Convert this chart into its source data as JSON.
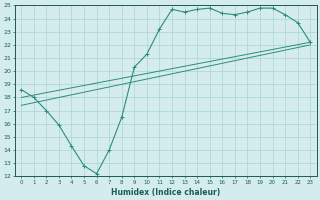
{
  "xlabel": "Humidex (Indice chaleur)",
  "bg_color": "#d4edec",
  "grid_color": "#a8d5d0",
  "line_color": "#2d8b80",
  "xlim": [
    -0.5,
    23.5
  ],
  "ylim": [
    12,
    25
  ],
  "xticks": [
    0,
    1,
    2,
    3,
    4,
    5,
    6,
    7,
    8,
    9,
    10,
    11,
    12,
    13,
    14,
    15,
    16,
    17,
    18,
    19,
    20,
    21,
    22,
    23
  ],
  "yticks": [
    12,
    13,
    14,
    15,
    16,
    17,
    18,
    19,
    20,
    21,
    22,
    23,
    24,
    25
  ],
  "curve1_x": [
    0,
    1,
    2,
    3,
    4,
    5,
    6,
    7,
    8,
    9,
    10,
    11,
    12,
    13,
    14,
    15,
    16,
    17,
    18,
    19,
    20,
    21,
    22,
    23
  ],
  "curve1_y": [
    18.6,
    18.0,
    17.0,
    15.9,
    14.3,
    12.8,
    12.2,
    14.0,
    16.5,
    20.3,
    21.3,
    23.2,
    24.7,
    24.5,
    24.7,
    24.8,
    24.4,
    24.3,
    24.5,
    24.8,
    24.8,
    24.3,
    23.7,
    22.2
  ],
  "line1_x": [
    0,
    23
  ],
  "line1_y": [
    18.0,
    22.2
  ],
  "line2_x": [
    0,
    23
  ],
  "line2_y": [
    17.4,
    22.0
  ]
}
